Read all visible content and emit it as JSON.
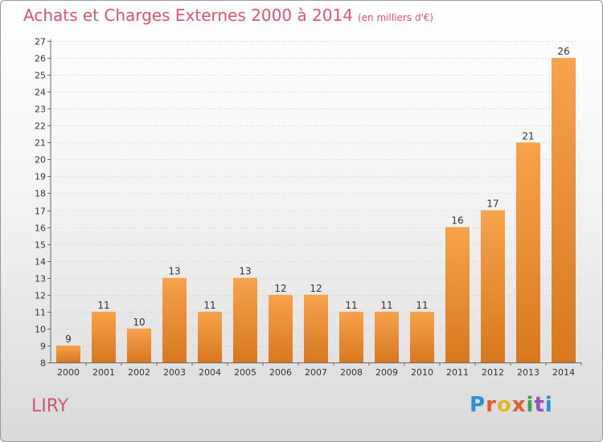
{
  "header": {
    "title": "Achats et Charges Externes 2000 à 2014",
    "unit": "(en milliers d'€)"
  },
  "footer": {
    "place": "LIRY",
    "logo": [
      "P",
      "r",
      "o",
      "x",
      "i",
      "t",
      "i"
    ]
  },
  "colors": {
    "bar_top": "#f7a24c",
    "bar_bottom": "#d8781f",
    "title": "#e0566a",
    "place": "#d25575"
  },
  "chart_data": {
    "type": "bar",
    "title": "Achats et Charges Externes 2000 à 2014",
    "subtitle": "(en milliers d'€)",
    "categories": [
      "2000",
      "2001",
      "2002",
      "2003",
      "2004",
      "2005",
      "2006",
      "2007",
      "2008",
      "2009",
      "2010",
      "2011",
      "2012",
      "2013",
      "2014"
    ],
    "values": [
      9,
      11,
      10,
      13,
      11,
      13,
      12,
      12,
      11,
      11,
      11,
      16,
      17,
      21,
      26
    ],
    "ylim": [
      8,
      27
    ],
    "yticks": [
      8,
      9,
      10,
      11,
      12,
      13,
      14,
      15,
      16,
      17,
      18,
      19,
      20,
      21,
      22,
      23,
      24,
      25,
      26,
      27
    ],
    "grid": true,
    "legend": "none"
  }
}
